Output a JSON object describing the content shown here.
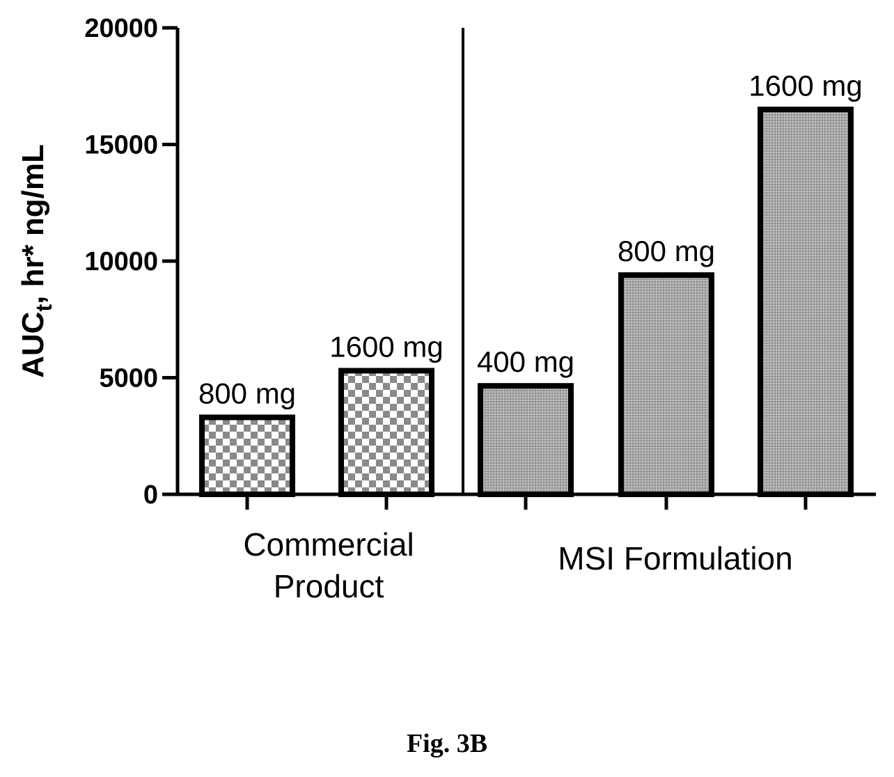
{
  "caption": "Fig. 3B",
  "chart_data": {
    "type": "bar",
    "title": "",
    "xlabel": "",
    "ylabel": "AUC",
    "ylabel_subscript": "t",
    "ylabel_rest": ", hr* ng/mL",
    "ylim": [
      0,
      20000
    ],
    "yticks": [
      0,
      5000,
      10000,
      15000,
      20000
    ],
    "grid": false,
    "groups": [
      {
        "label_lines": [
          "Commercial",
          "Product"
        ],
        "pattern": "checker",
        "bars": [
          {
            "label": "800 mg",
            "value": 3300
          },
          {
            "label": "1600 mg",
            "value": 5300
          }
        ]
      },
      {
        "label_lines": [
          "MSI Formulation"
        ],
        "pattern": "gray",
        "bars": [
          {
            "label": "400 mg",
            "value": 4650
          },
          {
            "label": "800 mg",
            "value": 9400
          },
          {
            "label": "1600 mg",
            "value": 16500
          }
        ]
      }
    ]
  }
}
